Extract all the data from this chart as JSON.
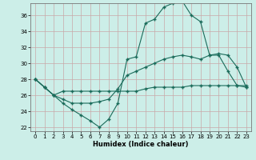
{
  "xlabel": "Humidex (Indice chaleur)",
  "xlim": [
    -0.5,
    23.5
  ],
  "ylim": [
    21.5,
    37.5
  ],
  "yticks": [
    22,
    24,
    26,
    28,
    30,
    32,
    34,
    36
  ],
  "xticks": [
    0,
    1,
    2,
    3,
    4,
    5,
    6,
    7,
    8,
    9,
    10,
    11,
    12,
    13,
    14,
    15,
    16,
    17,
    18,
    19,
    20,
    21,
    22,
    23
  ],
  "bg_color": "#cceee8",
  "grid_color": "#c8a8a8",
  "line_color": "#1a6b5a",
  "line1_x": [
    0,
    1,
    2,
    3,
    4,
    5,
    6,
    7,
    8,
    9,
    10,
    11,
    12,
    13,
    14,
    15,
    16,
    17,
    18,
    19,
    20,
    21,
    22,
    23
  ],
  "line1_y": [
    28.0,
    27.0,
    26.0,
    25.0,
    24.2,
    23.5,
    22.8,
    22.0,
    23.0,
    25.0,
    30.5,
    30.8,
    35.0,
    35.5,
    37.0,
    37.5,
    37.8,
    36.0,
    35.2,
    31.0,
    31.0,
    29.0,
    27.2,
    27.0
  ],
  "line2_x": [
    0,
    1,
    2,
    3,
    4,
    5,
    6,
    7,
    8,
    9,
    10,
    11,
    12,
    13,
    14,
    15,
    16,
    17,
    18,
    19,
    20,
    21,
    22,
    23
  ],
  "line2_y": [
    28.0,
    27.0,
    26.0,
    25.5,
    25.0,
    25.0,
    25.0,
    25.2,
    25.5,
    26.8,
    28.5,
    29.0,
    29.5,
    30.0,
    30.5,
    30.8,
    31.0,
    30.8,
    30.5,
    31.0,
    31.2,
    31.0,
    29.5,
    27.0
  ],
  "line3_x": [
    0,
    1,
    2,
    3,
    4,
    5,
    6,
    7,
    8,
    9,
    10,
    11,
    12,
    13,
    14,
    15,
    16,
    17,
    18,
    19,
    20,
    21,
    22,
    23
  ],
  "line3_y": [
    28.0,
    27.0,
    26.0,
    26.5,
    26.5,
    26.5,
    26.5,
    26.5,
    26.5,
    26.5,
    26.5,
    26.5,
    26.8,
    27.0,
    27.0,
    27.0,
    27.0,
    27.2,
    27.2,
    27.2,
    27.2,
    27.2,
    27.2,
    27.2
  ]
}
